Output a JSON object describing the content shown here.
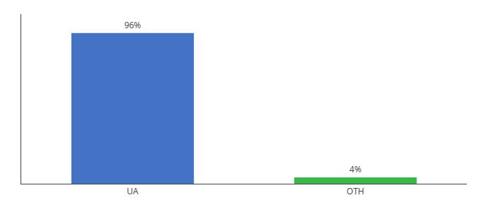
{
  "chart_data": {
    "type": "bar",
    "categories": [
      "UA",
      "OTH"
    ],
    "values": [
      96,
      4
    ],
    "value_labels": [
      "96%",
      "4%"
    ],
    "data_labels": true,
    "colors": [
      "#4472c4",
      "#3cb54a"
    ],
    "ylim": [
      0,
      108
    ],
    "grid": false,
    "tick_labels": "x"
  }
}
